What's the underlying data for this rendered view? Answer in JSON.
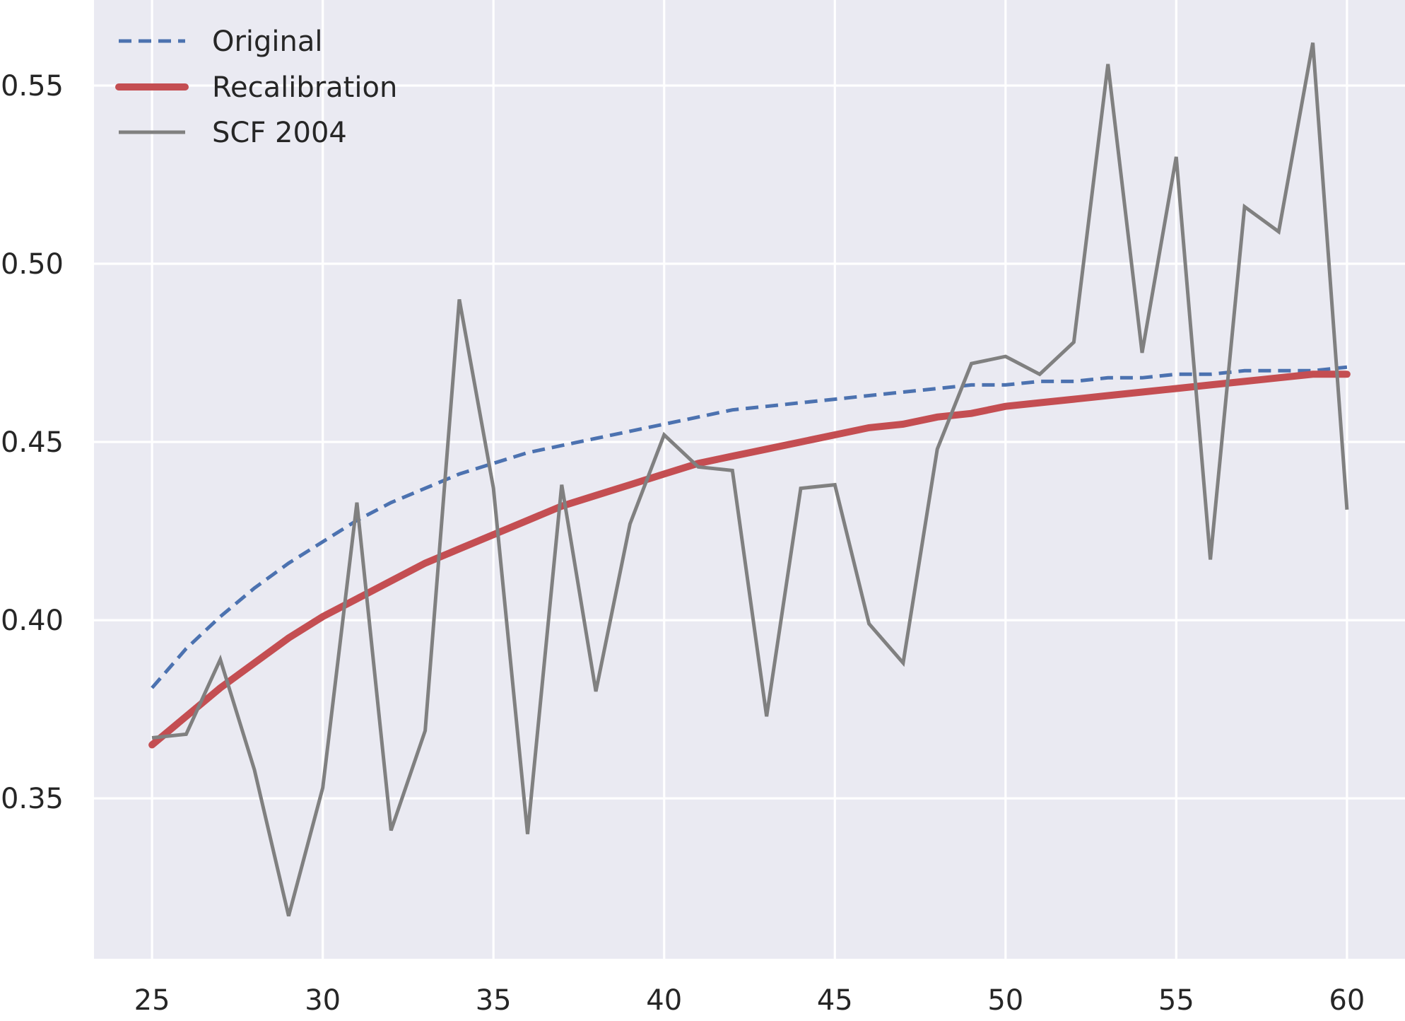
{
  "chart_data": {
    "type": "line",
    "title": "",
    "xlabel": "",
    "ylabel": "",
    "xlim": [
      23.3,
      61.7
    ],
    "ylim": [
      0.305,
      0.574
    ],
    "xticks": [
      25,
      30,
      35,
      40,
      45,
      50,
      55,
      60
    ],
    "xtick_labels": [
      "25",
      "30",
      "35",
      "40",
      "45",
      "50",
      "55",
      "60"
    ],
    "yticks": [
      0.35,
      0.4,
      0.45,
      0.5,
      0.55
    ],
    "ytick_labels": [
      "0.35",
      "0.40",
      "0.45",
      "0.50",
      "0.55"
    ],
    "grid": true,
    "legend_position": "top-left",
    "background_color": "#EAEAF2",
    "x": [
      25,
      26,
      27,
      28,
      29,
      30,
      31,
      32,
      33,
      34,
      35,
      36,
      37,
      38,
      39,
      40,
      41,
      42,
      43,
      44,
      45,
      46,
      47,
      48,
      49,
      50,
      51,
      52,
      53,
      54,
      55,
      56,
      57,
      58,
      59,
      60
    ],
    "series": [
      {
        "name": "Original",
        "color": "#4C72B0",
        "style": "dashed",
        "values": [
          0.381,
          0.392,
          0.401,
          0.409,
          0.416,
          0.422,
          0.428,
          0.433,
          0.437,
          0.441,
          0.444,
          0.447,
          0.449,
          0.451,
          0.453,
          0.455,
          0.457,
          0.459,
          0.46,
          0.461,
          0.462,
          0.463,
          0.464,
          0.465,
          0.466,
          0.466,
          0.467,
          0.467,
          0.468,
          0.468,
          0.469,
          0.469,
          0.47,
          0.47,
          0.47,
          0.471
        ]
      },
      {
        "name": "Recalibration",
        "color": "#C44E52",
        "style": "solid-thick",
        "values": [
          0.365,
          0.373,
          0.381,
          0.388,
          0.395,
          0.401,
          0.406,
          0.411,
          0.416,
          0.42,
          0.424,
          0.428,
          0.432,
          0.435,
          0.438,
          0.441,
          0.444,
          0.446,
          0.448,
          0.45,
          0.452,
          0.454,
          0.455,
          0.457,
          0.458,
          0.46,
          0.461,
          0.462,
          0.463,
          0.464,
          0.465,
          0.466,
          0.467,
          0.468,
          0.469,
          0.469
        ]
      },
      {
        "name": "SCF 2004",
        "color": "#808080",
        "style": "solid",
        "values": [
          0.367,
          0.368,
          0.389,
          0.358,
          0.317,
          0.353,
          0.433,
          0.341,
          0.369,
          0.49,
          0.437,
          0.34,
          0.438,
          0.38,
          0.427,
          0.452,
          0.443,
          0.442,
          0.373,
          0.437,
          0.438,
          0.399,
          0.388,
          0.448,
          0.472,
          0.474,
          0.469,
          0.478,
          0.556,
          0.475,
          0.53,
          0.417,
          0.516,
          0.509,
          0.562,
          0.431
        ]
      }
    ]
  }
}
